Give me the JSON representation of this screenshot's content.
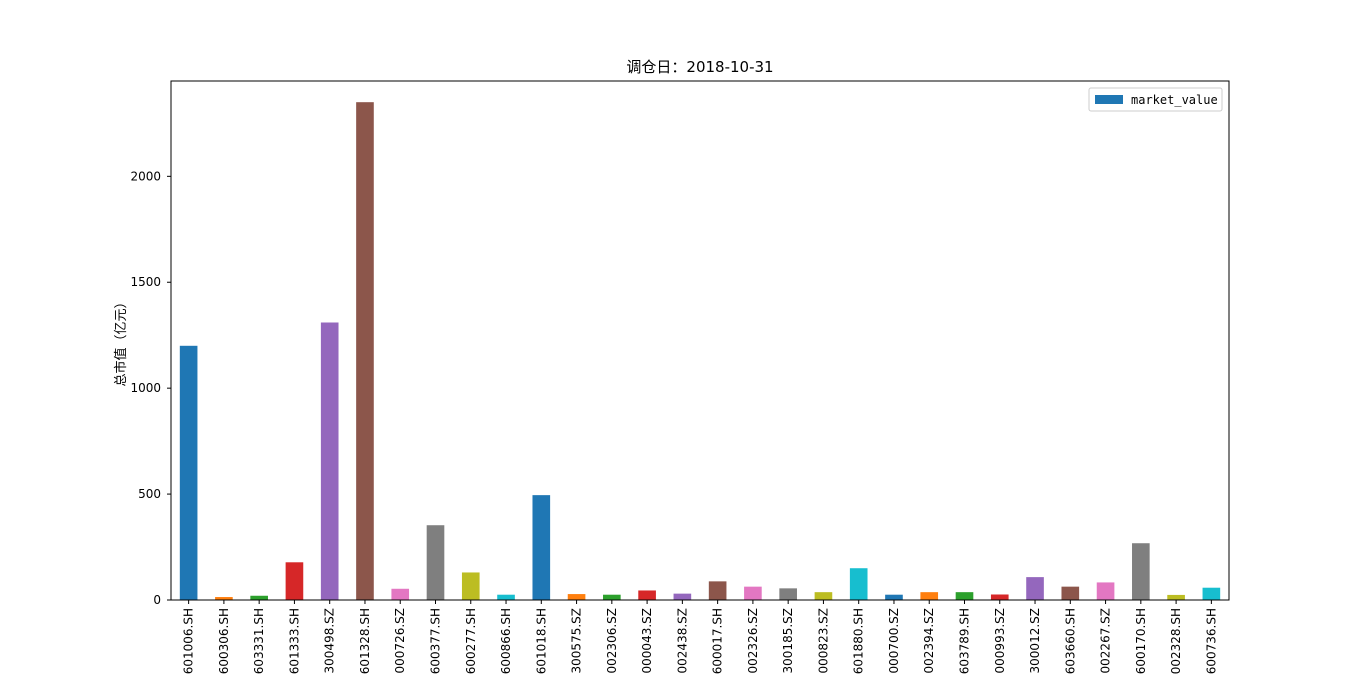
{
  "chart_data": {
    "type": "bar",
    "title": "调仓日：2018-10-31",
    "xlabel": "",
    "ylabel": "总市值（亿元）",
    "ylim": [
      0,
      2450
    ],
    "yticks": [
      0,
      500,
      1000,
      1500,
      2000
    ],
    "grid": false,
    "legend": {
      "position": "top-right",
      "entries": [
        "market_value"
      ]
    },
    "series": [
      {
        "name": "market_value",
        "categories": [
          "601006.SH",
          "600306.SH",
          "603331.SH",
          "601333.SH",
          "300498.SZ",
          "601328.SH",
          "000726.SZ",
          "600377.SH",
          "600277.SH",
          "600866.SH",
          "601018.SH",
          "300575.SZ",
          "002306.SZ",
          "000043.SZ",
          "002438.SZ",
          "600017.SH",
          "002326.SZ",
          "300185.SZ",
          "000823.SZ",
          "601880.SH",
          "000700.SZ",
          "002394.SZ",
          "603789.SH",
          "000993.SZ",
          "300012.SZ",
          "603660.SH",
          "002267.SZ",
          "600170.SH",
          "002328.SH",
          "600736.SH"
        ],
        "values": [
          1200,
          14,
          20,
          178,
          1310,
          2350,
          53,
          353,
          130,
          25,
          495,
          28,
          25,
          45,
          30,
          88,
          63,
          55,
          37,
          150,
          25,
          37,
          37,
          26,
          108,
          63,
          83,
          268,
          24,
          58
        ]
      }
    ],
    "colors": [
      "#1f77b4",
      "#ff7f0e",
      "#2ca02c",
      "#d62728",
      "#9467bd",
      "#8c564b",
      "#e377c2",
      "#7f7f7f",
      "#bcbd22",
      "#17becf"
    ]
  }
}
